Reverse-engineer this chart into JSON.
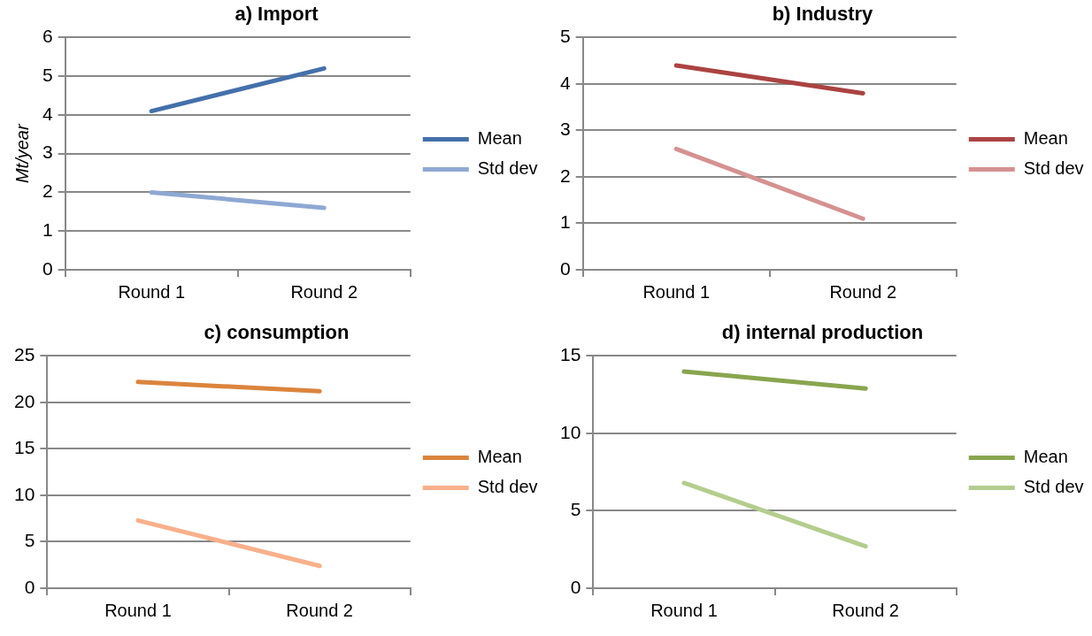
{
  "chart_data": [
    {
      "type": "line",
      "title": "a) Import",
      "ylabel": "Mt/year",
      "categories": [
        "Round 1",
        "Round 2"
      ],
      "series": [
        {
          "name": "Mean",
          "color": "#4470aa",
          "values": [
            4.1,
            5.2
          ]
        },
        {
          "name": "Std dev",
          "color": "#8ea8d3",
          "values": [
            2.0,
            1.6
          ]
        }
      ],
      "ylim": [
        0,
        6
      ],
      "yticks": [
        0,
        1,
        2,
        3,
        4,
        5,
        6
      ],
      "grid": "y",
      "legend": "right",
      "marker": "none"
    },
    {
      "type": "line",
      "title": "b) Industry",
      "categories": [
        "Round 1",
        "Round 2"
      ],
      "series": [
        {
          "name": "Mean",
          "color": "#aa4342",
          "values": [
            4.4,
            3.8
          ]
        },
        {
          "name": "Std dev",
          "color": "#d59191",
          "values": [
            2.6,
            1.1
          ]
        }
      ],
      "ylim": [
        0,
        5
      ],
      "yticks": [
        0,
        1,
        2,
        3,
        4,
        5
      ],
      "grid": "y",
      "legend": "right",
      "marker": "none"
    },
    {
      "type": "line",
      "title": "c) consumption",
      "categories": [
        "Round 1",
        "Round 2"
      ],
      "series": [
        {
          "name": "Mean",
          "color": "#db843d",
          "values": [
            22.2,
            21.2
          ]
        },
        {
          "name": "Std dev",
          "color": "#f8b08b",
          "values": [
            7.3,
            2.4
          ]
        }
      ],
      "ylim": [
        0,
        25
      ],
      "yticks": [
        0,
        5,
        10,
        15,
        20,
        25
      ],
      "grid": "y",
      "legend": "right",
      "marker": "none"
    },
    {
      "type": "line",
      "title": "d) internal production",
      "categories": [
        "Round 1",
        "Round 2"
      ],
      "series": [
        {
          "name": "Mean",
          "color": "#89a54e",
          "values": [
            14.0,
            12.9
          ]
        },
        {
          "name": "Std dev",
          "color": "#b4cd8e",
          "values": [
            6.8,
            2.7
          ]
        }
      ],
      "ylim": [
        0,
        15
      ],
      "yticks": [
        0,
        5,
        10,
        15
      ],
      "grid": "y",
      "legend": "right",
      "marker": "none"
    }
  ]
}
